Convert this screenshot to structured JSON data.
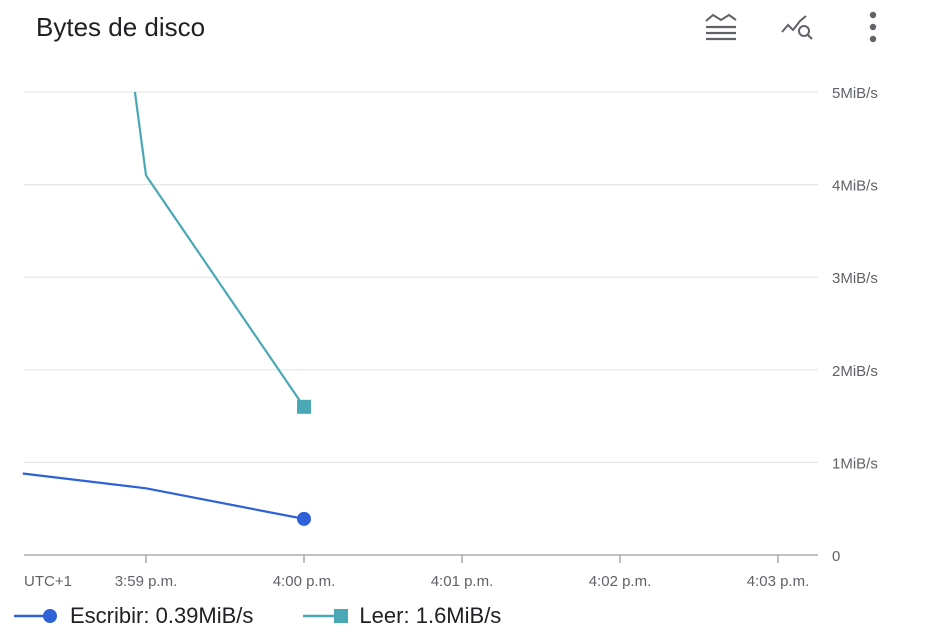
{
  "header": {
    "title": "Bytes de disco",
    "icons": [
      "legend-toggle-icon",
      "explore-chart-icon",
      "more-vert-icon"
    ]
  },
  "colors": {
    "write": "#2f62d6",
    "read": "#4aa8b6",
    "grid": "#e6e6e6",
    "axis": "#9e9e9e",
    "text": "#202124",
    "tick_text": "#5f6368"
  },
  "chart_data": {
    "type": "line",
    "title": "Bytes de disco",
    "timezone_label": "UTC+1",
    "x_tick_labels": [
      "3:59 p.m.",
      "4:00 p.m.",
      "4:01 p.m.",
      "4:02 p.m.",
      "4:03 p.m."
    ],
    "x_tick_minutes": [
      0,
      1,
      2,
      3,
      4
    ],
    "xlim_minutes": [
      -0.78,
      4.05
    ],
    "y_tick_labels": [
      "0",
      "1MiB/s",
      "2MiB/s",
      "3MiB/s",
      "4MiB/s",
      "5MiB/s"
    ],
    "y_tick_values": [
      0,
      1,
      2,
      3,
      4,
      5
    ],
    "ylim": [
      0,
      5
    ],
    "y_axis_side": "right",
    "grid": true,
    "legend_position": "bottom-left",
    "series": [
      {
        "key": "write",
        "name": "Escribir",
        "legend_value": "0.39MiB/s",
        "marker": "circle",
        "points": [
          [
            -0.78,
            0.88
          ],
          [
            0,
            0.72
          ],
          [
            1,
            0.39
          ]
        ]
      },
      {
        "key": "read",
        "name": "Leer",
        "legend_value": "1.6MiB/s",
        "marker": "square",
        "points": [
          [
            -0.07,
            5.0
          ],
          [
            0,
            4.1
          ],
          [
            1,
            1.6
          ]
        ]
      }
    ]
  },
  "legend": {
    "items": [
      {
        "name": "Escribir",
        "sep": ":",
        "value": "0.39MiB/s"
      },
      {
        "name": "Leer",
        "sep": ":",
        "value": "1.6MiB/s"
      }
    ]
  }
}
